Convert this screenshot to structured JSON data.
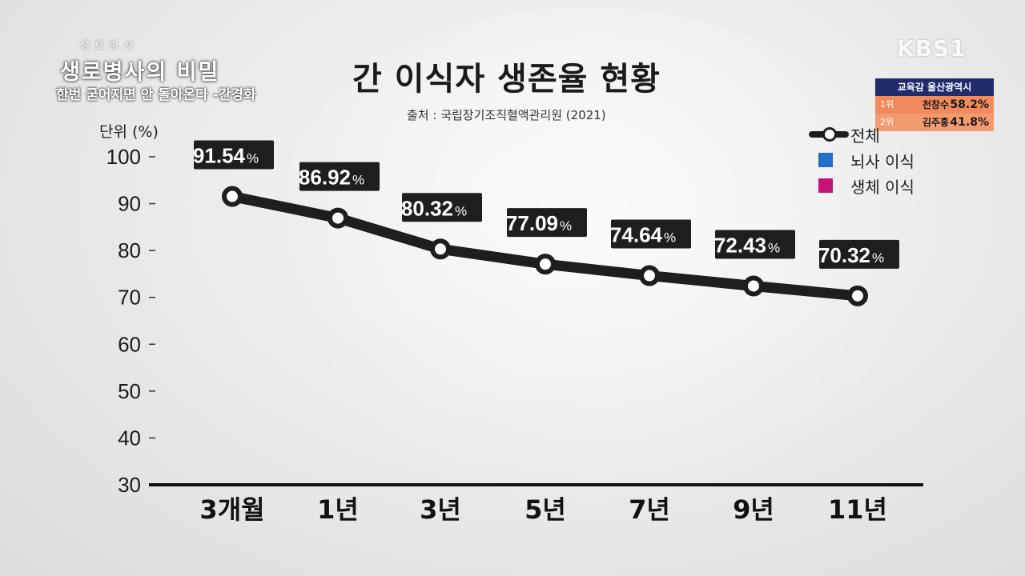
{
  "broadcast": {
    "show_small": "생로병사",
    "show_title": "생로병사의 비밀",
    "show_subtitle": "한번 굳어지면 안 돌아온다 -간경화",
    "channel_logo": "KBS1"
  },
  "election_box": {
    "header": "교육감 울산광역시",
    "rows": [
      {
        "rank": "1위",
        "name": "천창수",
        "pct": "58.2%"
      },
      {
        "rank": "2위",
        "name": "김주홍",
        "pct": "41.8%"
      }
    ]
  },
  "chart_data": {
    "type": "line",
    "title": "간 이식자 생존율 현황",
    "source": "출처 : 국립장기조직혈액관리원 (2021)",
    "ylabel": "단위 (%)",
    "ylim": [
      30,
      100
    ],
    "yticks": [
      "100",
      "90",
      "80",
      "70",
      "60",
      "50",
      "40",
      "30"
    ],
    "categories": [
      "3개월",
      "1년",
      "3년",
      "5년",
      "7년",
      "9년",
      "11년"
    ],
    "series": [
      {
        "name": "전체",
        "values": [
          91.54,
          86.92,
          80.32,
          77.09,
          74.64,
          72.43,
          70.32
        ],
        "color": "#1e1e1e"
      }
    ],
    "data_labels": [
      "91.54",
      "86.92",
      "80.32",
      "77.09",
      "74.64",
      "72.43",
      "70.32"
    ],
    "unit_suffix": "%",
    "legend": [
      {
        "label": "전체",
        "color": "#1e1e1e"
      },
      {
        "label": "뇌사 이식",
        "color": "#1f6fc9"
      },
      {
        "label": "생체 이식",
        "color": "#c8127e"
      }
    ],
    "legend_position": "top-right"
  }
}
